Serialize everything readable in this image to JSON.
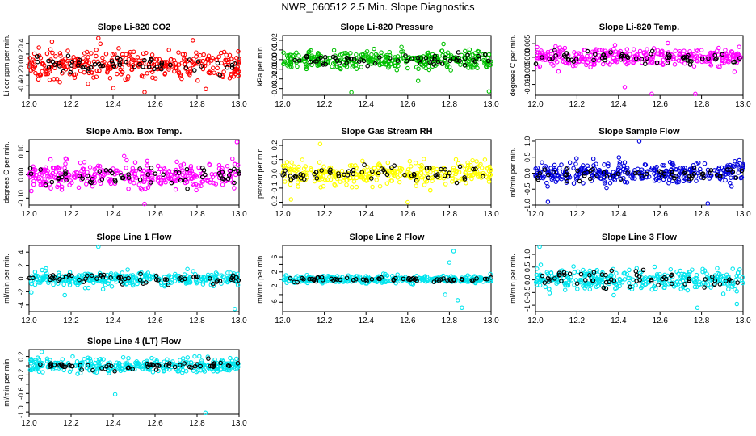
{
  "title": "NWR_060512  2.5 Min. Slope Diagnostics",
  "chart_data": [
    {
      "type": "scatter",
      "title": "Slope Li-820 CO2",
      "ylabel": "Li cor ppm per min.",
      "xlim": [
        12.0,
        13.0
      ],
      "ylim": [
        -0.58,
        0.55
      ],
      "yticks": [
        -0.4,
        -0.2,
        0.0,
        0.2,
        0.4
      ],
      "ytick_labels": [
        "-0.4",
        "-0.2",
        "0.0",
        "0.2",
        "0.4"
      ],
      "xticks": [
        12.0,
        12.2,
        12.4,
        12.6,
        12.8,
        13.0
      ],
      "xtick_labels": [
        "12.0",
        "12.2",
        "12.4",
        "12.6",
        "12.8",
        "13.0"
      ],
      "color": "#ff0000",
      "spread": 0.22,
      "black_spread": 0.12,
      "outliers": [
        [
          12.55,
          -0.52
        ],
        [
          12.33,
          0.5
        ],
        [
          12.78,
          0.46
        ]
      ]
    },
    {
      "type": "scatter",
      "title": "Slope Li-820 Pressure",
      "ylabel": "kPa per min.",
      "xlim": [
        12.0,
        13.0
      ],
      "ylim": [
        -0.037,
        0.025
      ],
      "yticks": [
        -0.03,
        -0.02,
        -0.01,
        0.0,
        0.01,
        0.02
      ],
      "ytick_labels": [
        "-0.03",
        "-0.02",
        "-0.01",
        "0.00",
        "0.01",
        "0.02"
      ],
      "xticks": [
        12.0,
        12.2,
        12.4,
        12.6,
        12.8,
        13.0
      ],
      "xtick_labels": [
        "12.0",
        "12.2",
        "12.4",
        "12.6",
        "12.8",
        "13.0"
      ],
      "color": "#00c000",
      "spread": 0.008,
      "black_spread": 0.005,
      "outliers": [
        [
          12.33,
          -0.034
        ],
        [
          12.99,
          -0.033
        ],
        [
          12.65,
          -0.022
        ]
      ]
    },
    {
      "type": "scatter",
      "title": "Slope Li-820 Temp.",
      "ylabel": "degrees C per min.",
      "xlim": [
        12.0,
        13.0
      ],
      "ylim": [
        -0.014,
        0.008
      ],
      "yticks": [
        -0.01,
        -0.005,
        0.0,
        0.005
      ],
      "ytick_labels": [
        "-0.010",
        "-0.005",
        "0.000",
        "0.005"
      ],
      "xticks": [
        12.0,
        12.2,
        12.4,
        12.6,
        12.8,
        13.0
      ],
      "xtick_labels": [
        "12.0",
        "12.2",
        "12.4",
        "12.6",
        "12.8",
        "13.0"
      ],
      "color": "#ff00ff",
      "spread": 0.0028,
      "black_spread": 0.0018,
      "outliers": [
        [
          12.56,
          -0.0135
        ],
        [
          12.77,
          -0.0135
        ],
        [
          12.43,
          -0.011
        ]
      ]
    },
    {
      "type": "scatter",
      "title": "Slope Amb. Box Temp.",
      "ylabel": "degrees C per min.",
      "xlim": [
        12.0,
        13.0
      ],
      "ylim": [
        -0.13,
        0.15
      ],
      "yticks": [
        -0.1,
        0.0,
        0.1
      ],
      "ytick_labels": [
        "-0.10",
        "0.00",
        "0.10"
      ],
      "xticks": [
        12.0,
        12.2,
        12.4,
        12.6,
        12.8,
        13.0
      ],
      "xtick_labels": [
        "12.0",
        "12.2",
        "12.4",
        "12.6",
        "12.8",
        "13.0"
      ],
      "color": "#ff00ff",
      "spread": 0.045,
      "black_spread": 0.035,
      "outliers": [
        [
          12.55,
          -0.125
        ],
        [
          12.99,
          0.14
        ]
      ]
    },
    {
      "type": "scatter",
      "title": "Slope Gas Stream RH",
      "ylabel": "percent per min.",
      "xlim": [
        12.0,
        13.0
      ],
      "ylim": [
        -0.22,
        0.24
      ],
      "yticks": [
        -0.2,
        -0.1,
        0.0,
        0.1,
        0.2
      ],
      "ytick_labels": [
        "-0.2",
        "-0.1",
        "0.0",
        "0.1",
        "0.2"
      ],
      "xticks": [
        12.0,
        12.2,
        12.4,
        12.6,
        12.8,
        13.0
      ],
      "xtick_labels": [
        "12.0",
        "12.2",
        "12.4",
        "12.6",
        "12.8",
        "13.0"
      ],
      "color": "#ffff00",
      "spread": 0.07,
      "black_spread": 0.05,
      "outliers": [
        [
          12.18,
          0.21
        ],
        [
          12.6,
          -0.2
        ],
        [
          12.04,
          -0.18
        ]
      ]
    },
    {
      "type": "scatter",
      "title": "Slope Sample Flow",
      "ylabel": "ml/min per min.",
      "xlim": [
        12.0,
        13.0
      ],
      "ylim": [
        -1.0,
        1.05
      ],
      "yticks": [
        -1.0,
        -0.5,
        0.0,
        0.5,
        1.0
      ],
      "ytick_labels": [
        "-1.0",
        "-0.5",
        "0.0",
        "0.5",
        "1.0"
      ],
      "xticks": [
        12.0,
        12.2,
        12.4,
        12.6,
        12.8,
        13.0
      ],
      "xtick_labels": [
        "12.0",
        "12.2",
        "12.4",
        "12.6",
        "12.8",
        "13.0"
      ],
      "color": "#0000dd",
      "spread": 0.3,
      "black_spread": 0.2,
      "outliers": [
        [
          12.5,
          1.0
        ],
        [
          12.83,
          -0.95
        ],
        [
          12.06,
          -0.9
        ]
      ]
    },
    {
      "type": "scatter",
      "title": "Slope Line 1 Flow",
      "ylabel": "ml/min per min.",
      "xlim": [
        12.0,
        13.0
      ],
      "ylim": [
        -5.0,
        5.0
      ],
      "yticks": [
        -4,
        -2,
        0,
        2,
        4
      ],
      "ytick_labels": [
        "-4",
        "-2",
        "0",
        "2",
        "4"
      ],
      "xticks": [
        12.0,
        12.2,
        12.4,
        12.6,
        12.8,
        13.0
      ],
      "xtick_labels": [
        "12.0",
        "12.2",
        "12.4",
        "12.6",
        "12.8",
        "13.0"
      ],
      "color": "#00e5ee",
      "spread": 0.9,
      "black_spread": 0.6,
      "outliers": [
        [
          12.33,
          4.8
        ],
        [
          12.98,
          -4.6
        ],
        [
          12.17,
          -2.5
        ]
      ]
    },
    {
      "type": "scatter",
      "title": "Slope Line 2 Flow",
      "ylabel": "ml/min per min.",
      "xlim": [
        12.0,
        13.0
      ],
      "ylim": [
        -8.5,
        9.0
      ],
      "yticks": [
        -6,
        -4,
        -2,
        0,
        2,
        4,
        6
      ],
      "ytick_labels": [
        "-6",
        "-2",
        "2",
        "6"
      ],
      "xticks": [
        12.0,
        12.2,
        12.4,
        12.6,
        12.8,
        13.0
      ],
      "xtick_labels": [
        "12.0",
        "12.2",
        "12.4",
        "12.6",
        "12.8",
        "13.0"
      ],
      "color": "#00e5ee",
      "spread": 0.8,
      "black_spread": 0.5,
      "outliers": [
        [
          12.82,
          7.5
        ],
        [
          12.8,
          4.5
        ],
        [
          12.84,
          -5.5
        ],
        [
          12.86,
          -7.5
        ],
        [
          12.78,
          -4.0
        ]
      ]
    },
    {
      "type": "scatter",
      "title": "Slope Line 3 Flow",
      "ylabel": "ml/min per min.",
      "xlim": [
        12.0,
        13.0
      ],
      "ylim": [
        -1.25,
        1.35
      ],
      "yticks": [
        -1.0,
        -0.5,
        0.0,
        0.5,
        1.0
      ],
      "ytick_labels": [
        "-1.0",
        "-0.5",
        "0.0",
        "0.5",
        "1.0"
      ],
      "xticks": [
        12.0,
        12.2,
        12.4,
        12.6,
        12.8,
        13.0
      ],
      "xtick_labels": [
        "12.0",
        "12.2",
        "12.4",
        "12.6",
        "12.8",
        "13.0"
      ],
      "color": "#00e5ee",
      "spread": 0.35,
      "black_spread": 0.3,
      "outliers": [
        [
          12.02,
          1.3
        ],
        [
          12.78,
          -1.1
        ],
        [
          12.97,
          -0.95
        ]
      ]
    },
    {
      "type": "scatter",
      "title": "Slope Line 4 (LT) Flow",
      "ylabel": "ml/min per min.",
      "xlim": [
        12.0,
        13.0
      ],
      "ylim": [
        -1.05,
        0.35
      ],
      "yticks": [
        -1.0,
        -0.8,
        -0.6,
        -0.4,
        -0.2,
        0.0,
        0.2
      ],
      "ytick_labels": [
        "-1.0",
        "-0.6",
        "-0.2",
        "0.2"
      ],
      "xticks": [
        12.0,
        12.2,
        12.4,
        12.6,
        12.8,
        13.0
      ],
      "xtick_labels": [
        "12.0",
        "12.2",
        "12.4",
        "12.6",
        "12.8",
        "13.0"
      ],
      "color": "#00e5ee",
      "spread": 0.12,
      "black_spread": 0.08,
      "outliers": [
        [
          12.41,
          -0.62
        ],
        [
          12.84,
          -1.02
        ],
        [
          12.06,
          0.3
        ]
      ]
    }
  ]
}
